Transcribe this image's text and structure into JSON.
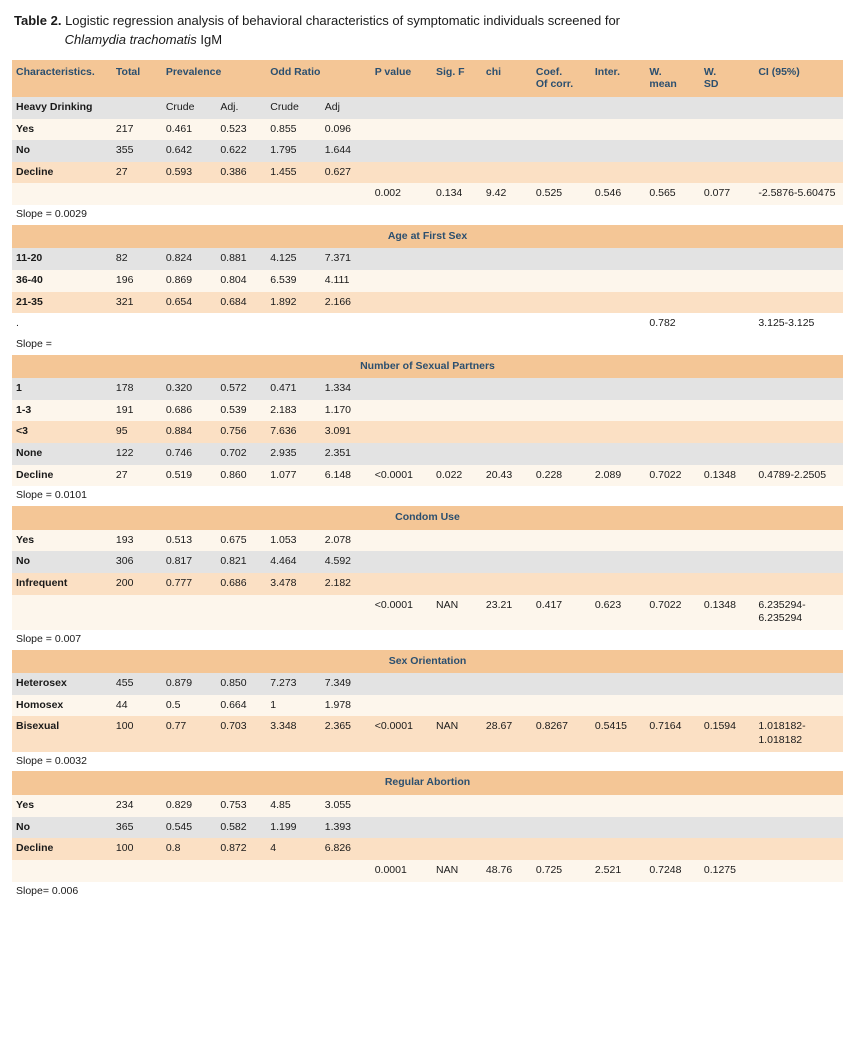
{
  "caption": {
    "label": "Table 2.",
    "text_a": "Logistic regression analysis of behavioral characteristics of symptomatic individuals screened for",
    "text_b": "Chlamydia trachomatis",
    "text_c": "IgM"
  },
  "headers": {
    "char": "Characteristics.",
    "total": "Total",
    "prev": "Prevalence",
    "or": "Odd Ratio",
    "pval": "P value",
    "sigf": "Sig. F",
    "chi": "chi",
    "coef_a": "Coef.",
    "coef_b": "Of corr.",
    "inter": "Inter.",
    "wmean_a": "W.",
    "wmean_b": "mean",
    "wsd_a": "W.",
    "wsd_b": "SD",
    "ci": "CI (95%)"
  },
  "sub": {
    "crude": "Crude",
    "adj": "Adj.",
    "adj2": "Adj"
  },
  "sections": [
    {
      "lead_label": "Heavy Drinking",
      "rows": [
        {
          "style": "row-cream",
          "char": "Yes",
          "total": "217",
          "pc": "0.461",
          "pa": "0.523",
          "oc": "0.855",
          "oa": "0.096"
        },
        {
          "style": "row-grey",
          "char": "No",
          "total": "355",
          "pc": "0.642",
          "pa": "0.622",
          "oc": "1.795",
          "oa": "1.644"
        },
        {
          "style": "row-peach",
          "char": "Decline",
          "total": "27",
          "pc": "0.593",
          "pa": "0.386",
          "oc": "1.455",
          "oa": "0.627"
        }
      ],
      "stats_style": "row-cream",
      "stats": {
        "pval": "0.002",
        "sigf": "0.134",
        "chi": "9.42",
        "coef": "0.525",
        "inter": "0.546",
        "wmean": "0.565",
        "wsd": "0.077",
        "ci": "-2.5876-5.60475"
      },
      "slope": "Slope = 0.0029"
    },
    {
      "title": "Age at First Sex",
      "rows": [
        {
          "style": "row-grey",
          "char": "11-20",
          "total": "82",
          "pc": "0.824",
          "pa": "0.881",
          "oc": "4.125",
          "oa": "7.371"
        },
        {
          "style": "row-cream",
          "char": "36-40",
          "total": "196",
          "pc": "0.869",
          "pa": "0.804",
          "oc": "6.539",
          "oa": "4.111"
        },
        {
          "style": "row-peach",
          "char": "21-35",
          "total": "321",
          "pc": "0.654",
          "pa": "0.684",
          "oc": "1.892",
          "oa": "2.166"
        }
      ],
      "stats_style": "row-plain",
      "stats_lead": ".",
      "stats": {
        "pval": "",
        "sigf": "",
        "chi": "",
        "coef": "",
        "inter": "",
        "wmean": "0.782",
        "wsd": "",
        "ci": "3.125-3.125"
      },
      "slope": "Slope ="
    },
    {
      "title": "Number of Sexual Partners",
      "rows": [
        {
          "style": "row-grey",
          "char": "1",
          "total": "178",
          "pc": "0.320",
          "pa": "0.572",
          "oc": "0.471",
          "oa": "1.334"
        },
        {
          "style": "row-cream",
          "char": "1-3",
          "total": "191",
          "pc": "0.686",
          "pa": "0.539",
          "oc": "2.183",
          "oa": "1.170"
        },
        {
          "style": "row-peach",
          "char": "<3",
          "total": "95",
          "pc": "0.884",
          "pa": "0.756",
          "oc": "7.636",
          "oa": "3.091"
        },
        {
          "style": "row-grey",
          "char": "None",
          "total": "122",
          "pc": "0.746",
          "pa": "0.702",
          "oc": "2.935",
          "oa": "2.351"
        }
      ],
      "stat_inline": {
        "style": "row-cream",
        "char": "Decline",
        "total": "27",
        "pc": "0.519",
        "pa": "0.860",
        "oc": "1.077",
        "oa": "6.148",
        "pval": "<0.0001",
        "sigf": "0.022",
        "chi": "20.43",
        "coef": "0.228",
        "inter": "2.089",
        "wmean": "0.7022",
        "wsd": "0.1348",
        "ci": "0.4789-2.2505"
      },
      "slope": "Slope = 0.0101"
    },
    {
      "title": "Condom Use",
      "rows": [
        {
          "style": "row-cream",
          "char": "Yes",
          "total": "193",
          "pc": "0.513",
          "pa": "0.675",
          "oc": "1.053",
          "oa": "2.078"
        },
        {
          "style": "row-grey",
          "char": "No",
          "total": "306",
          "pc": "0.817",
          "pa": "0.821",
          "oc": "4.464",
          "oa": "4.592"
        },
        {
          "style": "row-peach",
          "char": "Infrequent",
          "total": "200",
          "pc": "0.777",
          "pa": "0.686",
          "oc": "3.478",
          "oa": "2.182"
        }
      ],
      "stats_style": "row-cream",
      "stats": {
        "pval": "<0.0001",
        "sigf": "NAN",
        "chi": "23.21",
        "coef": "0.417",
        "inter": "0.623",
        "wmean": "0.7022",
        "wsd": "0.1348",
        "ci": "6.235294-6.235294"
      },
      "slope": "Slope = 0.007"
    },
    {
      "title": "Sex Orientation",
      "rows": [
        {
          "style": "row-grey",
          "char": "Heterosex",
          "total": "455",
          "pc": "0.879",
          "pa": "0.850",
          "oc": "7.273",
          "oa": "7.349"
        },
        {
          "style": "row-cream",
          "char": "Homosex",
          "total": "44",
          "pc": "0.5",
          "pa": "0.664",
          "oc": "1",
          "oa": "1.978"
        }
      ],
      "stat_inline": {
        "style": "row-peach",
        "char": "Bisexual",
        "total": "100",
        "pc": "0.77",
        "pa": "0.703",
        "oc": "3.348",
        "oa": "2.365",
        "pval": "<0.0001",
        "sigf": "NAN",
        "chi": "28.67",
        "coef": "0.8267",
        "inter": "0.5415",
        "wmean": "0.7164",
        "wsd": "0.1594",
        "ci": "1.018182-1.018182"
      },
      "slope": "Slope = 0.0032"
    },
    {
      "title": "Regular Abortion",
      "rows": [
        {
          "style": "row-cream",
          "char": "Yes",
          "total": "234",
          "pc": "0.829",
          "pa": "0.753",
          "oc": "4.85",
          "oa": "3.055"
        },
        {
          "style": "row-grey",
          "char": "No",
          "total": "365",
          "pc": "0.545",
          "pa": "0.582",
          "oc": "1.199",
          "oa": "1.393"
        },
        {
          "style": "row-peach",
          "char": "Decline",
          "total": "100",
          "pc": "0.8",
          "pa": "0.872",
          "oc": "4",
          "oa": "6.826"
        }
      ],
      "stats_style": "row-cream",
      "stats": {
        "pval": "0.0001",
        "sigf": "NAN",
        "chi": "48.76",
        "coef": "0.725",
        "inter": "2.521",
        "wmean": "0.7248",
        "wsd": "0.1275",
        "ci": ""
      },
      "slope": "Slope= 0.006"
    }
  ]
}
